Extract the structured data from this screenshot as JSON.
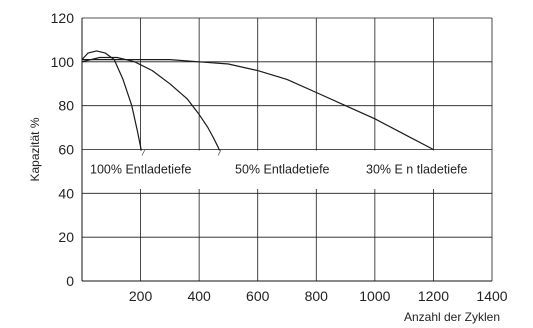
{
  "chart_data": {
    "type": "line",
    "xlabel": "Anzahl der Zyklen",
    "ylabel": "Kapazität %",
    "xlim": [
      0,
      1400
    ],
    "ylim": [
      0,
      120
    ],
    "xticks": [
      "200",
      "400",
      "600",
      "800",
      "1000",
      "1200",
      "1400"
    ],
    "yticks": [
      "0",
      "20",
      "40",
      "60",
      "80",
      "100",
      "120"
    ],
    "grid": true,
    "series": [
      {
        "label": "100% Entladetiefe",
        "x": [
          0,
          20,
          50,
          80,
          110,
          140,
          170,
          190,
          205,
          215
        ],
        "y": [
          101,
          104,
          105,
          104,
          101,
          92,
          80,
          68,
          58,
          46
        ],
        "color": "#1a1a1a"
      },
      {
        "label": "50% Entladetiefe",
        "x": [
          0,
          60,
          120,
          180,
          240,
          300,
          360,
          400,
          430,
          450,
          465,
          480
        ],
        "y": [
          100,
          102,
          102,
          100,
          96,
          90,
          83,
          76,
          70,
          65,
          61,
          56
        ],
        "color": "#1a1a1a"
      },
      {
        "label": "30% E n tladetiefe",
        "x": [
          0,
          100,
          200,
          300,
          400,
          500,
          600,
          700,
          800,
          900,
          1000,
          1100,
          1200
        ],
        "y": [
          101,
          101,
          101,
          101,
          100,
          99,
          96,
          92,
          86,
          80,
          74,
          67,
          60
        ],
        "color": "#1a1a1a"
      }
    ]
  }
}
